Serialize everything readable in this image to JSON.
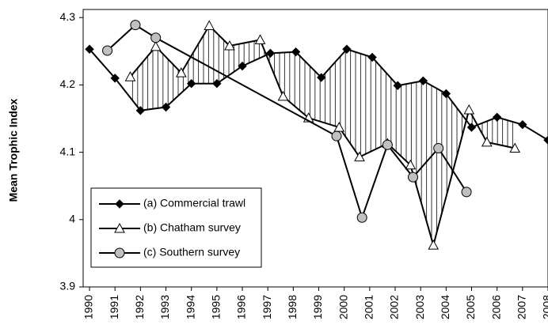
{
  "chart_data": {
    "type": "line",
    "y_label": "Mean Trophic Index",
    "xlim": [
      1989.75,
      2008
    ],
    "xticks": [
      1990,
      1991,
      1992,
      1993,
      1994,
      1995,
      1996,
      1997,
      1998,
      1999,
      2000,
      2001,
      2002,
      2003,
      2004,
      2005,
      2006,
      2007,
      2008
    ],
    "ylim": [
      3.9,
      4.312
    ],
    "yticks": [
      3.9,
      4,
      4.1,
      4.2,
      4.3
    ],
    "legend": "lower left",
    "hatch": true,
    "series": [
      {
        "name": "(a) Commercial trawl",
        "color": "#000000",
        "marker": "diamond",
        "x": [
          1990,
          1991,
          1992,
          1993,
          1994,
          1995,
          1996,
          1997.1,
          1998.1,
          1999.1,
          2000.1,
          2001.1,
          2002.1,
          2003.1,
          2004,
          2005,
          2006,
          2007,
          2008
        ],
        "values": [
          4.253,
          4.21,
          4.162,
          4.167,
          4.202,
          4.202,
          4.228,
          4.247,
          4.249,
          4.211,
          4.253,
          4.241,
          4.199,
          4.206,
          4.187,
          4.137,
          4.152,
          4.141,
          4.118
        ]
      },
      {
        "name": "(b) Chatham survey",
        "color": "#ffffff",
        "marker": "triangle",
        "x": [
          1991.6,
          1992.6,
          1993.6,
          1994.7,
          1995.5,
          1996.7,
          1997.6,
          1998.6,
          1999.8,
          2000.6,
          2001.7,
          2002.6,
          2003.5,
          2004.9,
          2005.6,
          2006.7
        ],
        "values": [
          4.212,
          4.257,
          4.218,
          4.288,
          4.258,
          4.267,
          4.183,
          4.151,
          4.137,
          4.093,
          4.113,
          4.081,
          3.962,
          4.163,
          4.115,
          4.106
        ]
      },
      {
        "name": "(c) Southern survey",
        "color": "#c0c0c0",
        "marker": "circle",
        "x": [
          1990.7,
          1991.8,
          1992.6,
          1999.7,
          2000.7,
          2001.7,
          2002.7,
          2003.7,
          2004.8
        ],
        "values": [
          4.251,
          4.289,
          4.27,
          4.124,
          4.003,
          4.111,
          4.063,
          4.106,
          4.041
        ]
      }
    ]
  }
}
